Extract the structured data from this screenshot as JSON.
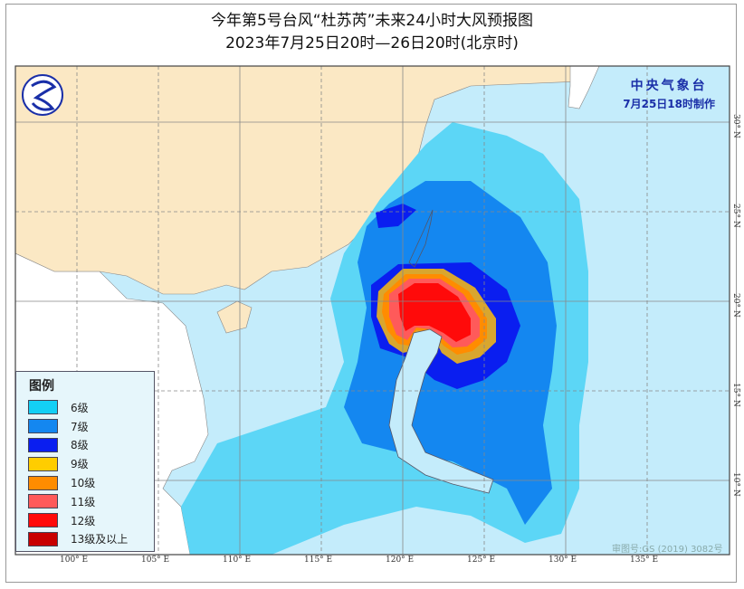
{
  "title": {
    "line1": "今年第5号台风“杜苏芮”未来24小时大风预报图",
    "line2": "2023年7月25日20时—26日20时(北京时)"
  },
  "agency": {
    "name": "中央气象台",
    "made": "7月25日18时制作"
  },
  "approval_no": "审图号:GS (2019) 3082号",
  "legend": {
    "title": "图例",
    "items": [
      {
        "label": "6级",
        "color": "#14cff5"
      },
      {
        "label": "7级",
        "color": "#1487f0"
      },
      {
        "label": "8级",
        "color": "#0a1ef0"
      },
      {
        "label": "9级",
        "color": "#ffcd00"
      },
      {
        "label": "10级",
        "color": "#ff8c00"
      },
      {
        "label": "11级",
        "color": "#ff5a5a"
      },
      {
        "label": "12级",
        "color": "#ff0a0a"
      },
      {
        "label": "13级及以上",
        "color": "#c80000"
      }
    ]
  },
  "lon_labels": [
    "100° E",
    "105° E",
    "110° E",
    "115° E",
    "120° E",
    "125° E",
    "130° E",
    "135° E"
  ],
  "lat_labels": [
    "30° N",
    "25° N",
    "20° N",
    "15° N",
    "10° N"
  ],
  "colors": {
    "sea": "#c4ecfb",
    "china_land": "#fbe8c4",
    "other_land": "#ffffff",
    "logo": "#1a2fa8"
  }
}
